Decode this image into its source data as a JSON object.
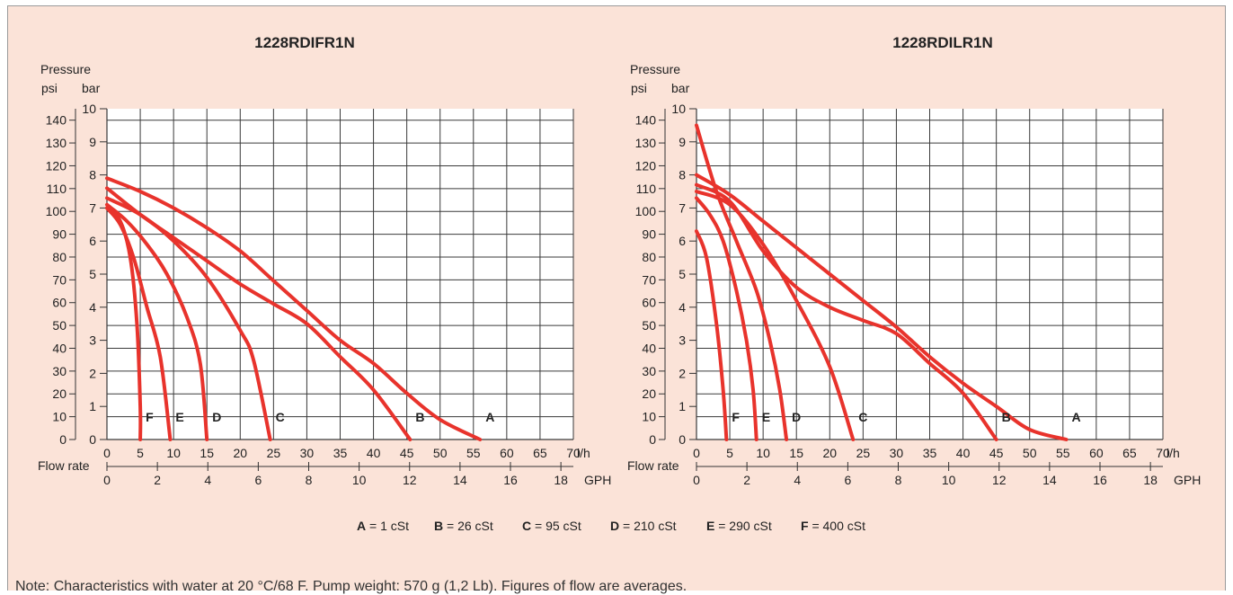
{
  "colors": {
    "background": "#fbe3d8",
    "curve": "#e8332c",
    "grid": "#3a3a3a"
  },
  "legend": [
    {
      "letter": "A",
      "text": " = 1 cSt"
    },
    {
      "letter": "B",
      "text": " = 26 cSt"
    },
    {
      "letter": "C",
      "text": " = 95 cSt"
    },
    {
      "letter": "D",
      "text": " = 210 cSt"
    },
    {
      "letter": "E",
      "text": " = 290 cSt"
    },
    {
      "letter": "F",
      "text": " = 400 cSt"
    }
  ],
  "note": "Note: Characteristics with water at 20 °C/68 F. Pump weight: 570 g (1,2 Lb). Figures of flow are averages.",
  "chart_data": [
    {
      "type": "line",
      "title": "1228RDIFR1N",
      "ylabel": "Pressure",
      "y_units": [
        "psi",
        "bar"
      ],
      "xlabel": "Flow rate",
      "x_units": [
        "l/h",
        "GPH"
      ],
      "x_unit": "l/h",
      "y_unit": "bar",
      "xlim": [
        0,
        70
      ],
      "ylim": [
        0,
        10
      ],
      "x_ticks_lh": [
        0,
        5,
        10,
        15,
        20,
        25,
        30,
        35,
        40,
        45,
        50,
        55,
        60,
        65,
        70
      ],
      "x_ticks_gph": [
        0,
        2,
        4,
        6,
        8,
        10,
        12,
        14,
        16,
        18
      ],
      "y_ticks_bar": [
        0,
        1,
        2,
        3,
        4,
        5,
        6,
        7,
        8,
        9,
        10
      ],
      "y_ticks_psi": [
        0,
        10,
        20,
        30,
        40,
        50,
        60,
        70,
        80,
        90,
        100,
        110,
        120,
        130,
        140
      ],
      "grid": true,
      "series": [
        {
          "name": "A",
          "points": [
            [
              0,
              7.9
            ],
            [
              5,
              7.5
            ],
            [
              10,
              7.0
            ],
            [
              15,
              6.4
            ],
            [
              20,
              5.7
            ],
            [
              25,
              4.8
            ],
            [
              30,
              3.9
            ],
            [
              35,
              3.0
            ],
            [
              40,
              2.3
            ],
            [
              45,
              1.4
            ],
            [
              50,
              0.6
            ],
            [
              56,
              0.0
            ]
          ]
        },
        {
          "name": "B",
          "points": [
            [
              0,
              7.6
            ],
            [
              5,
              6.8
            ],
            [
              10,
              6.1
            ],
            [
              15,
              5.4
            ],
            [
              20,
              4.7
            ],
            [
              25,
              4.1
            ],
            [
              30,
              3.5
            ],
            [
              35,
              2.5
            ],
            [
              40,
              1.5
            ],
            [
              45.5,
              0.0
            ]
          ]
        },
        {
          "name": "C",
          "points": [
            [
              0,
              7.3
            ],
            [
              5,
              6.8
            ],
            [
              10,
              6.0
            ],
            [
              15,
              4.9
            ],
            [
              20,
              3.3
            ],
            [
              22,
              2.4
            ],
            [
              24.5,
              0.0
            ]
          ]
        },
        {
          "name": "D",
          "points": [
            [
              0,
              7.1
            ],
            [
              3,
              6.6
            ],
            [
              6,
              5.9
            ],
            [
              9,
              5.0
            ],
            [
              12,
              3.7
            ],
            [
              14,
              2.3
            ],
            [
              15,
              0.0
            ]
          ]
        },
        {
          "name": "E",
          "points": [
            [
              0,
              7.0
            ],
            [
              2,
              6.5
            ],
            [
              4,
              5.5
            ],
            [
              6,
              4.0
            ],
            [
              8,
              2.5
            ],
            [
              9.5,
              0.0
            ]
          ]
        },
        {
          "name": "F",
          "points": [
            [
              0,
              7.0
            ],
            [
              2,
              6.6
            ],
            [
              3.5,
              5.5
            ],
            [
              4.5,
              3.5
            ],
            [
              5,
              1.0
            ],
            [
              5,
              0.0
            ]
          ]
        }
      ]
    },
    {
      "type": "line",
      "title": "1228RDILR1N",
      "ylabel": "Pressure",
      "y_units": [
        "psi",
        "bar"
      ],
      "xlabel": "Flow rate",
      "x_units": [
        "l/h",
        "GPH"
      ],
      "x_unit": "l/h",
      "y_unit": "bar",
      "xlim": [
        0,
        70
      ],
      "ylim": [
        0,
        10
      ],
      "x_ticks_lh": [
        0,
        5,
        10,
        15,
        20,
        25,
        30,
        35,
        40,
        45,
        50,
        55,
        60,
        65,
        70
      ],
      "x_ticks_gph": [
        0,
        2,
        4,
        6,
        8,
        10,
        12,
        14,
        16,
        18
      ],
      "y_ticks_bar": [
        0,
        1,
        2,
        3,
        4,
        5,
        6,
        7,
        8,
        9,
        10
      ],
      "y_ticks_psi": [
        0,
        10,
        20,
        30,
        40,
        50,
        60,
        70,
        80,
        90,
        100,
        110,
        120,
        130,
        140
      ],
      "grid": true,
      "series": [
        {
          "name": "A",
          "points": [
            [
              0,
              8.0
            ],
            [
              5,
              7.4
            ],
            [
              10,
              6.6
            ],
            [
              15,
              5.8
            ],
            [
              20,
              5.0
            ],
            [
              25,
              4.2
            ],
            [
              30,
              3.4
            ],
            [
              35,
              2.5
            ],
            [
              40,
              1.7
            ],
            [
              45,
              1.0
            ],
            [
              50,
              0.3
            ],
            [
              55.5,
              0.0
            ]
          ]
        },
        {
          "name": "B",
          "points": [
            [
              0,
              7.7
            ],
            [
              5,
              7.2
            ],
            [
              10,
              5.7
            ],
            [
              15,
              4.6
            ],
            [
              20,
              4.0
            ],
            [
              25,
              3.6
            ],
            [
              30,
              3.2
            ],
            [
              35,
              2.3
            ],
            [
              40,
              1.4
            ],
            [
              45,
              0.0
            ]
          ]
        },
        {
          "name": "C",
          "points": [
            [
              0,
              7.5
            ],
            [
              5,
              7.1
            ],
            [
              10,
              5.9
            ],
            [
              15,
              4.2
            ],
            [
              20,
              2.2
            ],
            [
              23.5,
              0.0
            ]
          ]
        },
        {
          "name": "D",
          "points": [
            [
              0,
              9.5
            ],
            [
              3,
              7.5
            ],
            [
              6,
              6.0
            ],
            [
              9,
              4.5
            ],
            [
              11,
              3.0
            ],
            [
              12.5,
              1.5
            ],
            [
              13.5,
              0.0
            ]
          ]
        },
        {
          "name": "E",
          "points": [
            [
              0,
              7.3
            ],
            [
              2,
              6.8
            ],
            [
              4,
              6.0
            ],
            [
              6,
              4.5
            ],
            [
              7.5,
              3.0
            ],
            [
              8.5,
              1.5
            ],
            [
              9,
              0.0
            ]
          ]
        },
        {
          "name": "F",
          "points": [
            [
              0,
              6.3
            ],
            [
              1.5,
              5.5
            ],
            [
              3,
              3.5
            ],
            [
              4,
              1.5
            ],
            [
              4.5,
              0.0
            ]
          ]
        }
      ]
    }
  ]
}
